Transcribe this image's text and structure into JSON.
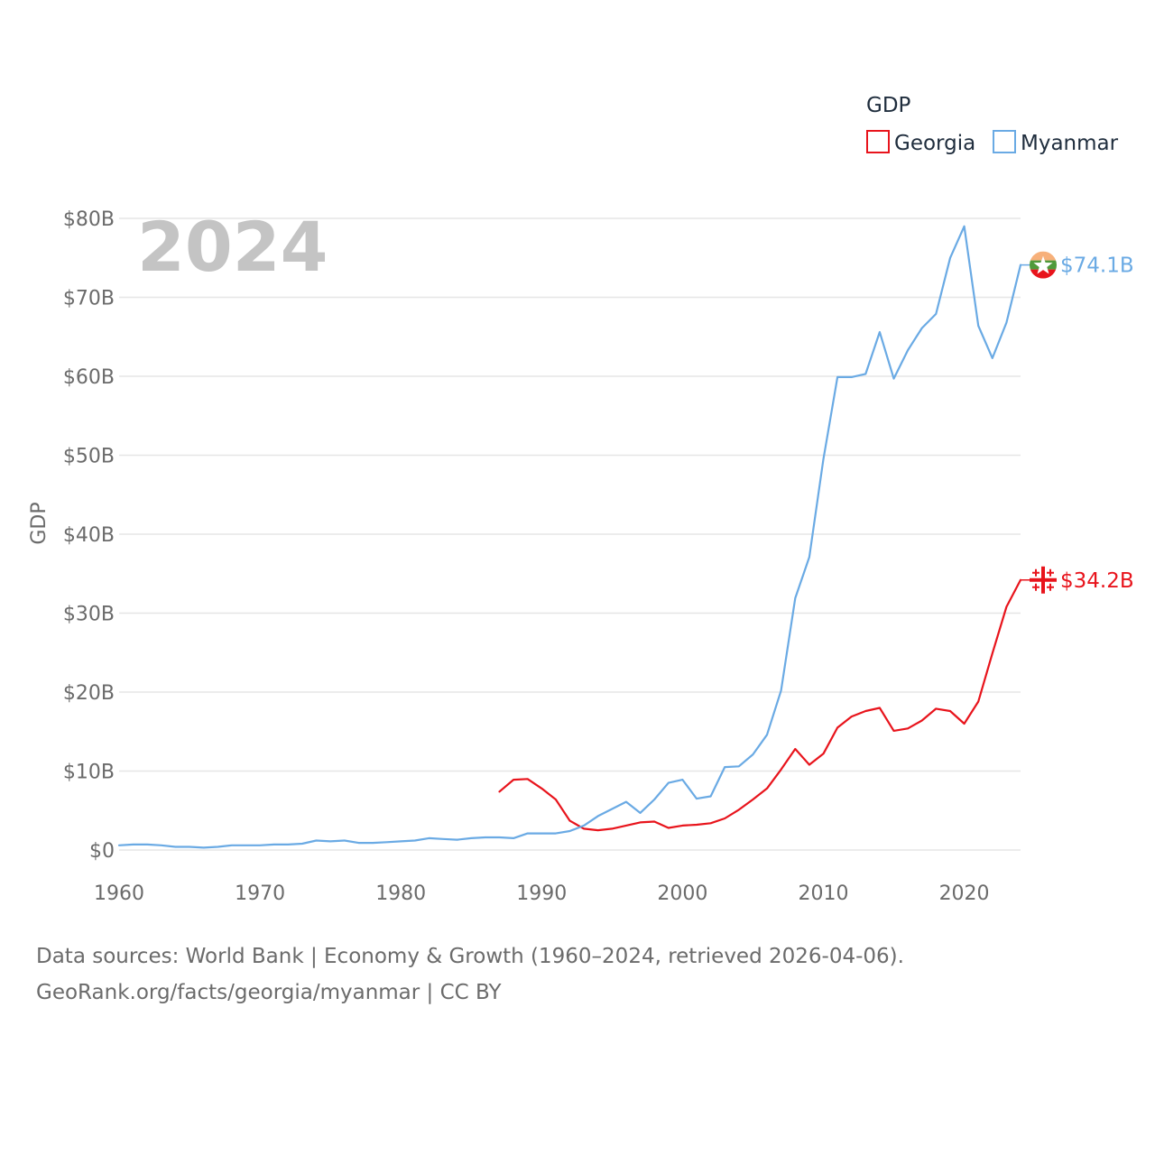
{
  "chart_data": {
    "type": "line",
    "year_label": "2024",
    "ylabel": "GDP",
    "xlabel": "",
    "legend_title": "GDP",
    "legend_position": "top-right",
    "xlim": [
      1960,
      2024
    ],
    "ylim": [
      0,
      80
    ],
    "x_ticks": [
      1960,
      1970,
      1980,
      1990,
      2000,
      2010,
      2020
    ],
    "y_ticks": [
      0,
      10,
      20,
      30,
      40,
      50,
      60,
      70,
      80
    ],
    "y_tick_labels": [
      "$0",
      "$10B",
      "$20B",
      "$30B",
      "$40B",
      "$50B",
      "$60B",
      "$70B",
      "$80B"
    ],
    "grid": true,
    "series": [
      {
        "name": "Georgia",
        "color": "#e8141c",
        "end_label": "$34.2B",
        "icon": "georgia-flag-icon",
        "start_year": 1987,
        "values": [
          7.4,
          8.9,
          9.0,
          7.8,
          6.4,
          3.7,
          2.7,
          2.5,
          2.7,
          3.1,
          3.5,
          3.6,
          2.8,
          3.1,
          3.2,
          3.4,
          4.0,
          5.1,
          6.4,
          7.8,
          10.2,
          12.8,
          10.8,
          12.2,
          15.5,
          16.9,
          17.6,
          18.0,
          15.1,
          15.4,
          16.4,
          17.9,
          17.6,
          16.0,
          18.8,
          24.9,
          30.8,
          34.2
        ]
      },
      {
        "name": "Myanmar",
        "color": "#6aaae4",
        "end_label": "$74.1B",
        "icon": "myanmar-flag-icon",
        "start_year": 1960,
        "values": [
          0.6,
          0.7,
          0.7,
          0.6,
          0.4,
          0.4,
          0.3,
          0.4,
          0.6,
          0.6,
          0.6,
          0.7,
          0.7,
          0.8,
          1.2,
          1.1,
          1.2,
          0.9,
          0.9,
          1.0,
          1.1,
          1.2,
          1.5,
          1.4,
          1.3,
          1.5,
          1.6,
          1.6,
          1.5,
          2.1,
          2.1,
          2.1,
          2.4,
          3.1,
          4.3,
          5.2,
          6.1,
          4.7,
          6.4,
          8.5,
          8.9,
          6.5,
          6.8,
          10.5,
          10.6,
          12.1,
          14.6,
          20.2,
          31.9,
          37.1,
          49.5,
          59.9,
          59.9,
          60.3,
          65.6,
          59.7,
          63.3,
          66.1,
          67.9,
          75.0,
          79.0,
          66.4,
          62.3,
          66.8,
          74.1
        ]
      }
    ]
  },
  "source": {
    "line1": "Data sources: World Bank | Economy & Growth (1960–2024, retrieved 2026-04-06).",
    "line2": "GeoRank.org/facts/georgia/myanmar | CC BY"
  }
}
